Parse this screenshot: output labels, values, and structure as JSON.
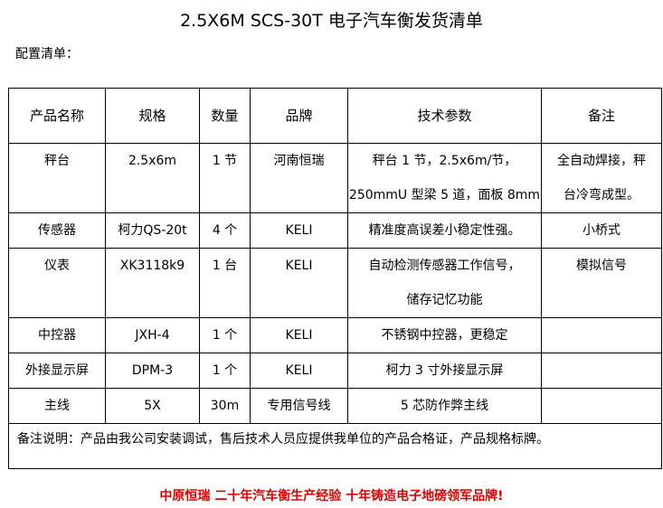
{
  "title": "2.5X6M SCS-30T 电子汽车衡发货清单",
  "subtitle": "配置清单：",
  "headers": [
    "产品名称",
    "规格",
    "数量",
    "品牌",
    "技术参数",
    "备注"
  ],
  "rows": [
    {
      "name": "秤台",
      "spec": "2.5x6m",
      "qty": "1 节",
      "brand": "河南恒瑞",
      "tech": [
        "秤台 1 节，2.5x6m/节，",
        "250mmU 型梁 5 道，面板 8mm"
      ],
      "remark": [
        "全自动焊接，秤",
        "台冷弯成型。"
      ]
    },
    {
      "name": "传感器",
      "spec": "柯力QS-20t",
      "qty": "4 个",
      "brand": "KELI",
      "tech": [
        "精准度高误差小稳定性强。"
      ],
      "remark": [
        "小桥式"
      ]
    },
    {
      "name": "仪表",
      "spec": "XK3118k9",
      "qty": "1 台",
      "brand": "KELI",
      "tech": [
        "自动检测传感器工作信号，",
        "储存记忆功能"
      ],
      "remark": [
        "模拟信号"
      ]
    },
    {
      "name": "中控器",
      "spec": "JXH-4",
      "qty": "1 个",
      "brand": "KELI",
      "tech": [
        "不锈钢中控器，更稳定"
      ],
      "remark": [
        ""
      ]
    },
    {
      "name": "外接显示屏",
      "spec": "DPM-3",
      "qty": "1 个",
      "brand": "KELI",
      "tech": [
        "柯力 3 寸外接显示屏"
      ],
      "remark": [
        ""
      ]
    },
    {
      "name": "主线",
      "spec": "5X",
      "qty": "30m",
      "brand": "专用信号线",
      "tech": [
        "5 芯防作弊主线"
      ],
      "remark": [
        ""
      ]
    }
  ],
  "note": "备注说明：产品由我公司安装调试，售后技术人员应提供我单位的产品合格证，产品规格标牌。",
  "footer": "中原恒瑞 二十年汽车衡生产经验 十年铸造电子地磅领军品牌!",
  "footer_color": "#e00000"
}
